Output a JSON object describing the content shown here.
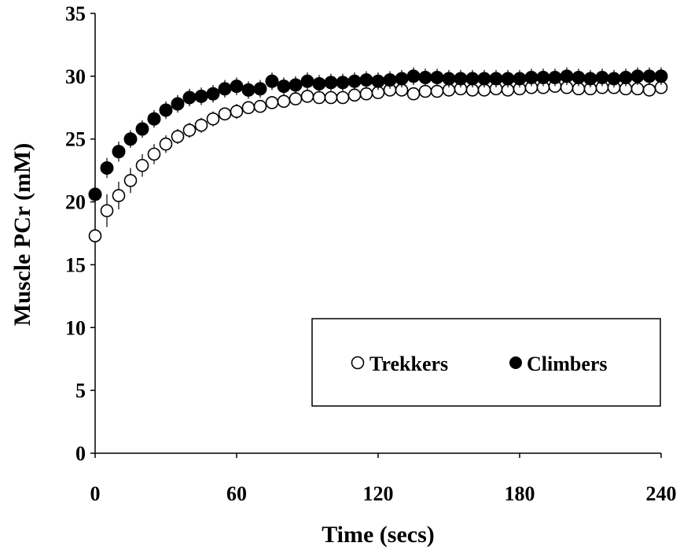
{
  "chart_data": {
    "type": "scatter",
    "title": "",
    "xlabel": "Time (secs)",
    "ylabel": "Muscle PCr (mM)",
    "xlim": [
      0,
      240
    ],
    "ylim": [
      0,
      35
    ],
    "xticks": [
      0,
      60,
      120,
      180,
      240
    ],
    "yticks": [
      0,
      5,
      10,
      15,
      20,
      25,
      30,
      35
    ],
    "grid": false,
    "legend_position": "lower-right",
    "x": [
      0,
      5,
      10,
      15,
      20,
      25,
      30,
      35,
      40,
      45,
      50,
      55,
      60,
      65,
      70,
      75,
      80,
      85,
      90,
      95,
      100,
      105,
      110,
      115,
      120,
      125,
      130,
      135,
      140,
      145,
      150,
      155,
      160,
      165,
      170,
      175,
      180,
      185,
      190,
      195,
      200,
      205,
      210,
      215,
      220,
      225,
      230,
      235,
      240
    ],
    "series": [
      {
        "name": "Trekkers",
        "marker": "open-circle",
        "color": "#000000",
        "values": [
          17.3,
          19.3,
          20.5,
          21.7,
          22.9,
          23.8,
          24.6,
          25.2,
          25.7,
          26.1,
          26.6,
          27.0,
          27.2,
          27.5,
          27.6,
          27.9,
          28.0,
          28.2,
          28.4,
          28.3,
          28.3,
          28.3,
          28.5,
          28.6,
          28.7,
          28.9,
          28.9,
          28.6,
          28.8,
          28.8,
          28.9,
          29.0,
          28.9,
          28.9,
          29.0,
          28.9,
          29.0,
          29.1,
          29.1,
          29.2,
          29.1,
          29.0,
          29.0,
          29.1,
          29.1,
          29.0,
          29.0,
          28.9,
          29.1
        ],
        "errors": [
          0.3,
          1.3,
          1.1,
          1.0,
          0.9,
          0.8,
          0.7,
          0.6,
          0.6,
          0.6,
          0.6,
          0.5,
          0.6,
          0.5,
          0.5,
          0.5,
          0.5,
          0.5,
          0.5,
          0.5,
          0.5,
          0.5,
          0.5,
          0.5,
          0.5,
          0.5,
          0.5,
          0.5,
          0.5,
          0.5,
          0.5,
          0.5,
          0.5,
          0.5,
          0.5,
          0.5,
          0.5,
          0.5,
          0.5,
          0.5,
          0.5,
          0.5,
          0.5,
          0.5,
          0.5,
          0.5,
          0.5,
          0.5,
          0.5
        ]
      },
      {
        "name": "Climbers",
        "marker": "filled-circle",
        "color": "#000000",
        "values": [
          20.6,
          22.7,
          24.0,
          25.0,
          25.8,
          26.6,
          27.3,
          27.8,
          28.3,
          28.4,
          28.6,
          29.0,
          29.2,
          28.9,
          29.0,
          29.6,
          29.2,
          29.3,
          29.6,
          29.4,
          29.5,
          29.5,
          29.6,
          29.7,
          29.6,
          29.7,
          29.8,
          30.0,
          29.9,
          29.9,
          29.8,
          29.8,
          29.8,
          29.8,
          29.8,
          29.8,
          29.8,
          29.9,
          29.9,
          29.9,
          30.0,
          29.9,
          29.8,
          29.9,
          29.8,
          29.9,
          30.0,
          30.0,
          30.0
        ],
        "errors": [
          0.6,
          0.8,
          0.8,
          0.7,
          0.7,
          0.7,
          0.7,
          0.7,
          0.7,
          0.7,
          0.7,
          0.7,
          0.7,
          0.7,
          0.7,
          0.7,
          0.7,
          0.7,
          0.7,
          0.7,
          0.7,
          0.7,
          0.7,
          0.7,
          0.7,
          0.7,
          0.7,
          0.7,
          0.7,
          0.7,
          0.7,
          0.7,
          0.7,
          0.7,
          0.7,
          0.7,
          0.7,
          0.7,
          0.7,
          0.7,
          0.7,
          0.7,
          0.7,
          0.7,
          0.7,
          0.7,
          0.7,
          0.7,
          0.7
        ]
      }
    ]
  }
}
